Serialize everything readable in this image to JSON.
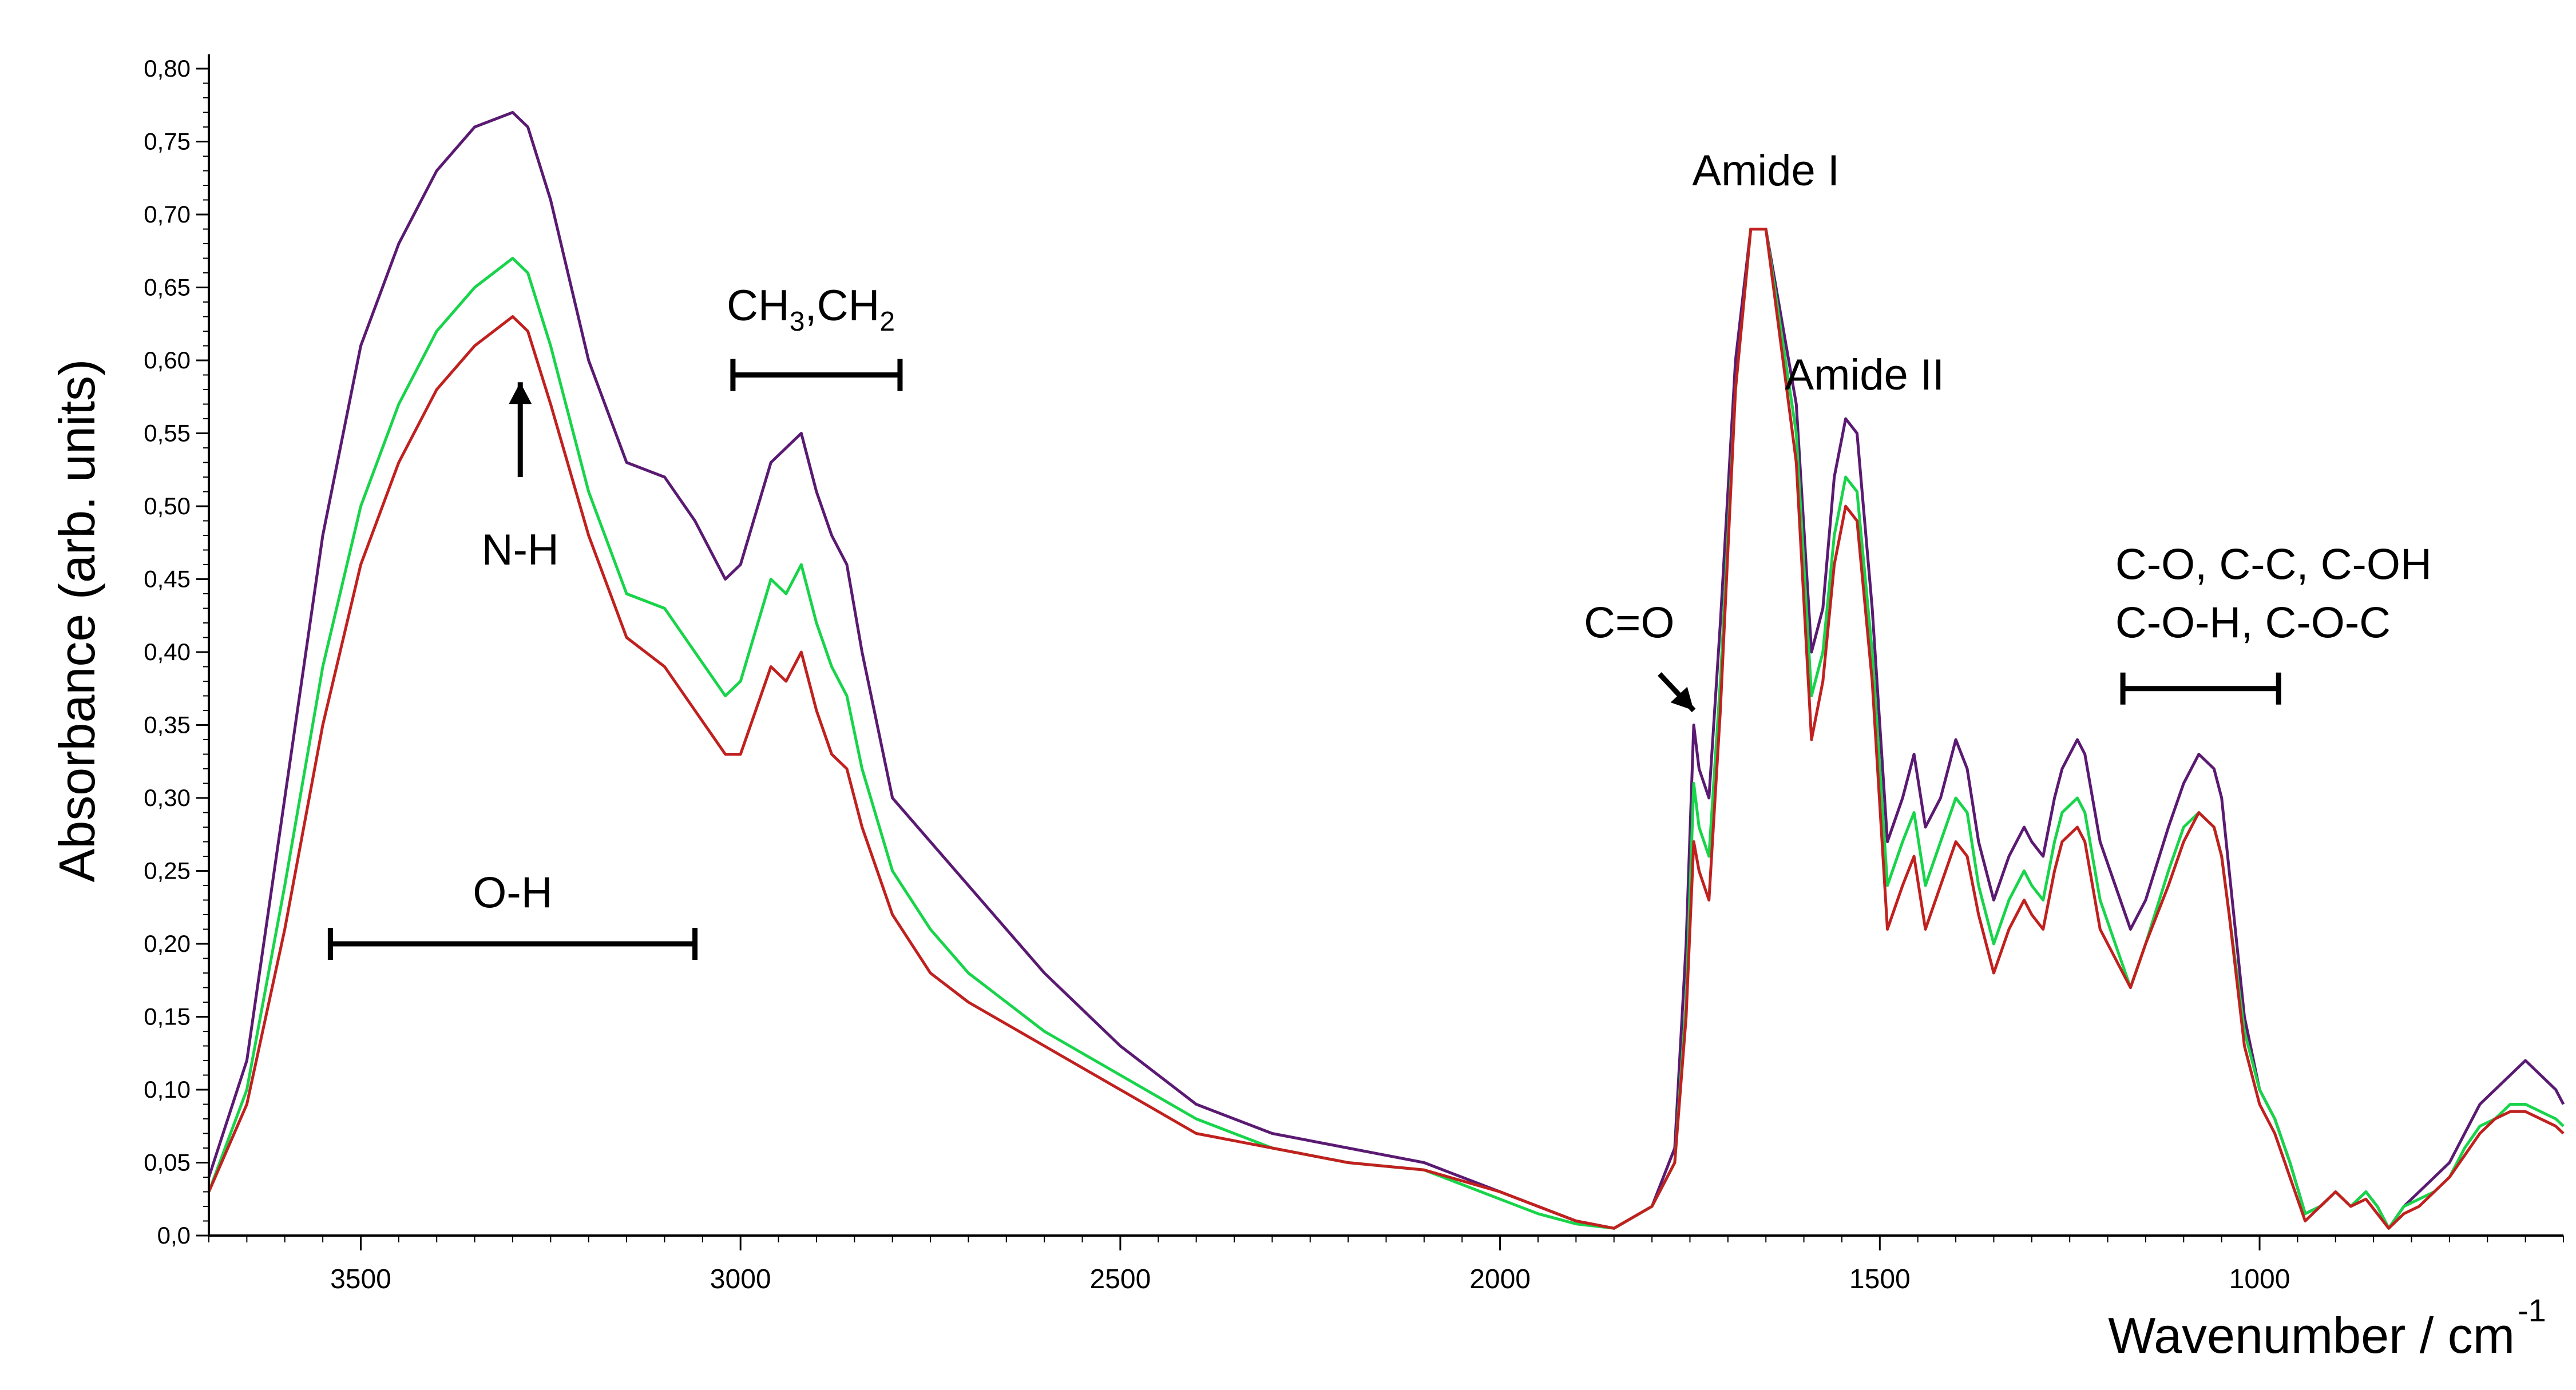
{
  "chart_data": {
    "type": "line",
    "title": "",
    "xlabel": "Wavenumber / cm",
    "xlabel_sup": "-1",
    "ylabel": "Absorbance (arb. units)",
    "xlim": [
      3700,
      600
    ],
    "ylim": [
      0,
      0.8
    ],
    "x_ticks": [
      3500,
      3000,
      2500,
      2000,
      1500,
      1000
    ],
    "x_tick_labels": [
      "3500",
      "3000",
      "2500",
      "2000",
      "1500",
      "1000"
    ],
    "y_ticks": [
      0,
      0.05,
      0.1,
      0.15,
      0.2,
      0.25,
      0.3,
      0.35,
      0.4,
      0.45,
      0.5,
      0.55,
      0.6,
      0.65,
      0.7,
      0.75,
      0.8
    ],
    "y_tick_labels": [
      "0,0",
      "0,05",
      "0,10",
      "0,15",
      "0,20",
      "0,25",
      "0,30",
      "0,35",
      "0,40",
      "0,45",
      "0,50",
      "0,55",
      "0,60",
      "0,65",
      "0,70",
      "0,75",
      "0,80"
    ],
    "grid": false,
    "legend": "none",
    "series": [
      {
        "name": "purple",
        "color": "#5a1a72",
        "x": [
          3700,
          3650,
          3600,
          3550,
          3500,
          3450,
          3400,
          3350,
          3300,
          3280,
          3250,
          3200,
          3150,
          3100,
          3060,
          3020,
          3000,
          2960,
          2940,
          2920,
          2900,
          2880,
          2860,
          2840,
          2800,
          2750,
          2700,
          2600,
          2500,
          2400,
          2300,
          2200,
          2100,
          2000,
          1950,
          1900,
          1850,
          1800,
          1770,
          1755,
          1745,
          1738,
          1725,
          1710,
          1690,
          1670,
          1650,
          1630,
          1610,
          1590,
          1575,
          1560,
          1545,
          1530,
          1510,
          1490,
          1470,
          1455,
          1440,
          1420,
          1400,
          1385,
          1370,
          1350,
          1330,
          1310,
          1300,
          1285,
          1270,
          1260,
          1240,
          1230,
          1210,
          1190,
          1170,
          1150,
          1120,
          1100,
          1080,
          1060,
          1050,
          1040,
          1020,
          1000,
          980,
          960,
          940,
          920,
          900,
          880,
          860,
          845,
          830,
          810,
          790,
          770,
          750,
          730,
          710,
          690,
          670,
          650,
          630,
          610,
          600
        ],
        "y": [
          0.04,
          0.12,
          0.3,
          0.48,
          0.61,
          0.68,
          0.73,
          0.76,
          0.77,
          0.76,
          0.71,
          0.6,
          0.53,
          0.52,
          0.49,
          0.45,
          0.46,
          0.53,
          0.54,
          0.55,
          0.51,
          0.48,
          0.46,
          0.4,
          0.3,
          0.27,
          0.24,
          0.18,
          0.13,
          0.09,
          0.07,
          0.06,
          0.05,
          0.03,
          0.02,
          0.01,
          0.005,
          0.02,
          0.06,
          0.2,
          0.35,
          0.32,
          0.3,
          0.42,
          0.6,
          0.69,
          0.69,
          0.63,
          0.57,
          0.4,
          0.43,
          0.52,
          0.56,
          0.55,
          0.43,
          0.27,
          0.3,
          0.33,
          0.28,
          0.3,
          0.34,
          0.32,
          0.27,
          0.23,
          0.26,
          0.28,
          0.27,
          0.26,
          0.3,
          0.32,
          0.34,
          0.33,
          0.27,
          0.24,
          0.21,
          0.23,
          0.28,
          0.31,
          0.33,
          0.32,
          0.3,
          0.25,
          0.15,
          0.1,
          0.08,
          0.05,
          0.015,
          0.02,
          0.03,
          0.02,
          0.03,
          0.02,
          0.005,
          0.02,
          0.03,
          0.04,
          0.05,
          0.07,
          0.09,
          0.1,
          0.11,
          0.12,
          0.11,
          0.1,
          0.09
        ]
      },
      {
        "name": "green",
        "color": "#18d44a",
        "x": [
          3700,
          3650,
          3600,
          3550,
          3500,
          3450,
          3400,
          3350,
          3300,
          3280,
          3250,
          3200,
          3150,
          3100,
          3060,
          3020,
          3000,
          2960,
          2940,
          2920,
          2900,
          2880,
          2860,
          2840,
          2800,
          2750,
          2700,
          2600,
          2500,
          2400,
          2300,
          2200,
          2100,
          2000,
          1950,
          1900,
          1850,
          1800,
          1770,
          1755,
          1745,
          1738,
          1725,
          1710,
          1690,
          1670,
          1650,
          1630,
          1610,
          1590,
          1575,
          1560,
          1545,
          1530,
          1510,
          1490,
          1470,
          1455,
          1440,
          1420,
          1400,
          1385,
          1370,
          1350,
          1330,
          1310,
          1300,
          1285,
          1270,
          1260,
          1240,
          1230,
          1210,
          1190,
          1170,
          1150,
          1120,
          1100,
          1080,
          1060,
          1050,
          1040,
          1020,
          1000,
          980,
          960,
          940,
          920,
          900,
          880,
          860,
          845,
          830,
          810,
          790,
          770,
          750,
          730,
          710,
          690,
          670,
          650,
          630,
          610,
          600
        ],
        "y": [
          0.03,
          0.1,
          0.24,
          0.39,
          0.5,
          0.57,
          0.62,
          0.65,
          0.67,
          0.66,
          0.61,
          0.51,
          0.44,
          0.43,
          0.4,
          0.37,
          0.38,
          0.45,
          0.44,
          0.46,
          0.42,
          0.39,
          0.37,
          0.32,
          0.25,
          0.21,
          0.18,
          0.14,
          0.11,
          0.08,
          0.06,
          0.05,
          0.045,
          0.025,
          0.015,
          0.008,
          0.005,
          0.02,
          0.05,
          0.16,
          0.31,
          0.28,
          0.26,
          0.38,
          0.58,
          0.69,
          0.69,
          0.62,
          0.55,
          0.37,
          0.4,
          0.48,
          0.52,
          0.51,
          0.4,
          0.24,
          0.27,
          0.29,
          0.24,
          0.27,
          0.3,
          0.29,
          0.24,
          0.2,
          0.23,
          0.25,
          0.24,
          0.23,
          0.27,
          0.29,
          0.3,
          0.29,
          0.23,
          0.2,
          0.17,
          0.2,
          0.25,
          0.28,
          0.29,
          0.28,
          0.26,
          0.22,
          0.14,
          0.1,
          0.08,
          0.05,
          0.015,
          0.02,
          0.03,
          0.02,
          0.03,
          0.02,
          0.005,
          0.02,
          0.025,
          0.03,
          0.04,
          0.06,
          0.075,
          0.08,
          0.09,
          0.09,
          0.085,
          0.08,
          0.075
        ]
      },
      {
        "name": "red",
        "color": "#c0211f",
        "x": [
          3700,
          3650,
          3600,
          3550,
          3500,
          3450,
          3400,
          3350,
          3300,
          3280,
          3250,
          3200,
          3150,
          3100,
          3060,
          3020,
          3000,
          2960,
          2940,
          2920,
          2900,
          2880,
          2860,
          2840,
          2800,
          2750,
          2700,
          2600,
          2500,
          2400,
          2300,
          2200,
          2100,
          2000,
          1950,
          1900,
          1850,
          1800,
          1770,
          1755,
          1745,
          1738,
          1725,
          1710,
          1690,
          1670,
          1650,
          1630,
          1610,
          1590,
          1575,
          1560,
          1545,
          1530,
          1510,
          1490,
          1470,
          1455,
          1440,
          1420,
          1400,
          1385,
          1370,
          1350,
          1330,
          1310,
          1300,
          1285,
          1270,
          1260,
          1240,
          1230,
          1210,
          1190,
          1170,
          1150,
          1120,
          1100,
          1080,
          1060,
          1050,
          1040,
          1020,
          1000,
          980,
          960,
          940,
          920,
          900,
          880,
          860,
          845,
          830,
          810,
          790,
          770,
          750,
          730,
          710,
          690,
          670,
          650,
          630,
          610,
          600
        ],
        "y": [
          0.03,
          0.09,
          0.21,
          0.35,
          0.46,
          0.53,
          0.58,
          0.61,
          0.63,
          0.62,
          0.57,
          0.48,
          0.41,
          0.39,
          0.36,
          0.33,
          0.33,
          0.39,
          0.38,
          0.4,
          0.36,
          0.33,
          0.32,
          0.28,
          0.22,
          0.18,
          0.16,
          0.13,
          0.1,
          0.07,
          0.06,
          0.05,
          0.045,
          0.03,
          0.02,
          0.01,
          0.005,
          0.02,
          0.05,
          0.15,
          0.27,
          0.25,
          0.23,
          0.36,
          0.58,
          0.69,
          0.69,
          0.61,
          0.53,
          0.34,
          0.38,
          0.46,
          0.5,
          0.49,
          0.38,
          0.21,
          0.24,
          0.26,
          0.21,
          0.24,
          0.27,
          0.26,
          0.22,
          0.18,
          0.21,
          0.23,
          0.22,
          0.21,
          0.25,
          0.27,
          0.28,
          0.27,
          0.21,
          0.19,
          0.17,
          0.2,
          0.24,
          0.27,
          0.29,
          0.28,
          0.26,
          0.22,
          0.13,
          0.09,
          0.07,
          0.04,
          0.01,
          0.02,
          0.03,
          0.02,
          0.025,
          0.015,
          0.005,
          0.015,
          0.02,
          0.03,
          0.04,
          0.055,
          0.07,
          0.08,
          0.085,
          0.085,
          0.08,
          0.075,
          0.07
        ]
      }
    ],
    "annotations": [
      {
        "id": "amide-1",
        "text": "Amide I",
        "x": 1650,
        "y": 0.72
      },
      {
        "id": "amide-2",
        "text": "Amide II",
        "x": 1520,
        "y": 0.58
      },
      {
        "id": "nh",
        "text": "N-H",
        "x": 3290,
        "y": 0.46,
        "arrow_from": [
          3290,
          0.52
        ],
        "arrow_to": [
          3290,
          0.585
        ]
      },
      {
        "id": "co",
        "text": "C=O",
        "x": 1830,
        "y": 0.41
      },
      {
        "id": "oh",
        "text": "O-H",
        "x": 3300,
        "y": 0.225
      },
      {
        "id": "c-group-line1",
        "text": "C-O, C-C, C-OH",
        "x": 1190,
        "y": 0.45
      },
      {
        "id": "c-group-line2",
        "text": "C-O-H, C-O-C",
        "x": 1190,
        "y": 0.41
      }
    ],
    "ch_label": {
      "base": "CH",
      "sub1": "3",
      "sep": ",CH",
      "sub2": "2"
    },
    "arrow_co": {
      "from": [
        1790,
        0.385
      ],
      "to": [
        1745,
        0.36
      ]
    },
    "ranges": [
      {
        "id": "oh-range",
        "x1": 3540,
        "x2": 3060,
        "y": 0.2
      },
      {
        "id": "ch-range",
        "x1": 3010,
        "x2": 2790,
        "y": 0.59
      },
      {
        "id": "c-range",
        "x1": 1180,
        "x2": 975,
        "y": 0.375
      }
    ]
  }
}
